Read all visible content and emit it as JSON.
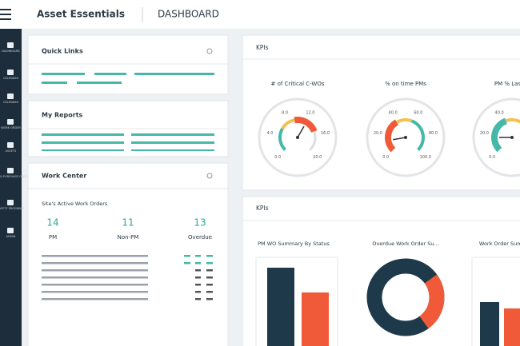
{
  "header": {
    "app": "Asset Essentials",
    "page": "DASHBOARD"
  },
  "sidebar": [
    "DASHBOARD",
    "CALENDAR",
    "CALENDAR",
    "WORK ORDER",
    "ASSETS",
    "PARTS & PURCHASE ORDERS",
    "SAFETY PROGRAMS",
    "ADMIN"
  ],
  "quick_links": {
    "title": "Quick Links"
  },
  "my_reports": {
    "title": "My Reports"
  },
  "work_center": {
    "title": "Work Center",
    "subtitle": "Site's Active Work Orders",
    "counts": [
      {
        "value": "14",
        "label": "PM"
      },
      {
        "value": "11",
        "label": "Non-PM"
      },
      {
        "value": "13",
        "label": "Overdue"
      }
    ]
  },
  "kpis": {
    "title": "KPIs",
    "gauges": [
      {
        "title": "# of Critical C-WOs",
        "labels": [
          "0.0",
          "4.0",
          "8.0",
          "12.0",
          "16.0",
          "20.0"
        ]
      },
      {
        "title": "% on time PMs",
        "labels": [
          "0.0",
          "20.0",
          "40.0",
          "60.0",
          "80.0",
          "100.0"
        ]
      },
      {
        "title": "PM % Last M",
        "labels": [
          "0.0",
          "20.0",
          "40.0"
        ]
      }
    ]
  },
  "kpis2": {
    "title": "KPIs",
    "charts": [
      "PM WO Summary By Status",
      "Overdue Work Order Su...",
      "Work Order Summ..."
    ]
  }
}
